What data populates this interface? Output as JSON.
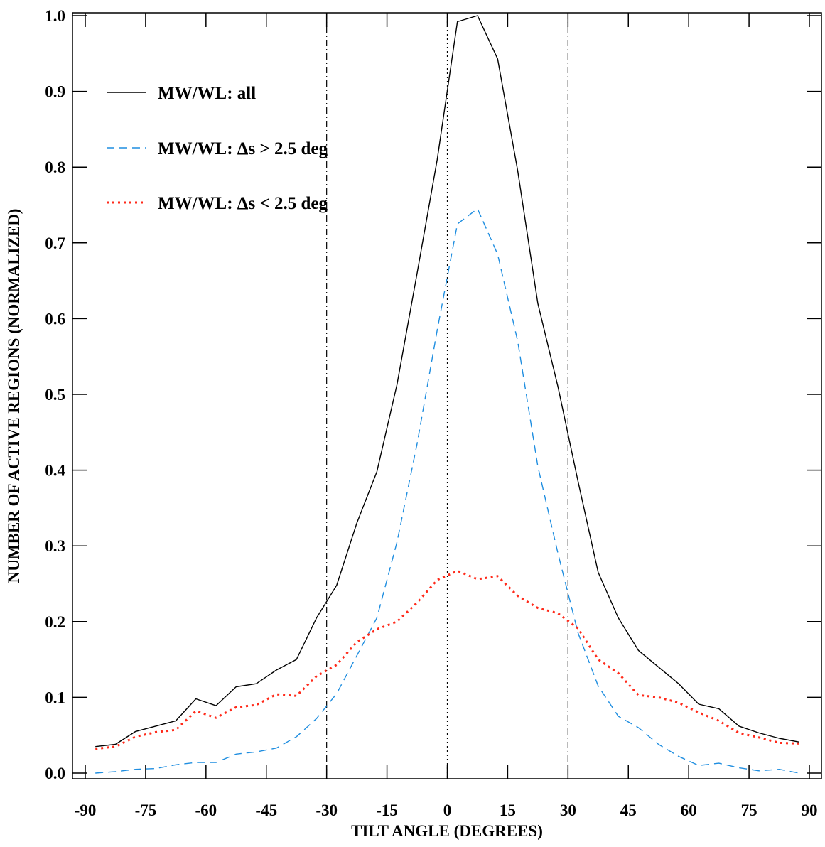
{
  "chart_data": {
    "type": "line",
    "xlabel": "TILT  ANGLE   (DEGREES)",
    "ylabel": "NUMBER  OF  ACTIVE  REGIONS  (NORMALIZED)",
    "xlim": [
      -90,
      90
    ],
    "ylim": [
      0,
      1.0
    ],
    "x_ticks": [
      -90,
      -75,
      -60,
      -45,
      -30,
      -15,
      0,
      15,
      30,
      45,
      60,
      75,
      90
    ],
    "y_ticks": [
      0.0,
      0.1,
      0.2,
      0.3,
      0.4,
      0.5,
      0.6,
      0.7,
      0.8,
      0.9,
      1.0
    ],
    "x_tick_labels": [
      "-90",
      "-75",
      "-60",
      "-45",
      "-30",
      "-15",
      "0",
      "15",
      "30",
      "45",
      "60",
      "75",
      "90"
    ],
    "y_tick_labels": [
      "0.0",
      "0.1",
      "0.2",
      "0.3",
      "0.4",
      "0.5",
      "0.6",
      "0.7",
      "0.8",
      "0.9",
      "1.0"
    ],
    "reference_lines": [
      {
        "x": -30,
        "style": "dashdot"
      },
      {
        "x": 0,
        "style": "dotted"
      },
      {
        "x": 30,
        "style": "dashdot"
      }
    ],
    "legend_position": "top-left",
    "x": [
      -87.5,
      -82.5,
      -77.5,
      -72.5,
      -67.5,
      -62.5,
      -57.5,
      -52.5,
      -47.5,
      -42.5,
      -37.5,
      -32.5,
      -27.5,
      -22.5,
      -17.5,
      -12.5,
      -7.5,
      -2.5,
      2.5,
      7.5,
      12.5,
      17.5,
      22.5,
      27.5,
      32.5,
      37.5,
      42.5,
      47.5,
      52.5,
      57.5,
      62.5,
      67.5,
      72.5,
      77.5,
      82.5,
      87.5
    ],
    "series": [
      {
        "name": "MW/WL:  all",
        "color": "#000000",
        "dash": "solid",
        "values": [
          0.035,
          0.038,
          0.055,
          0.062,
          0.069,
          0.098,
          0.089,
          0.114,
          0.118,
          0.136,
          0.15,
          0.205,
          0.248,
          0.33,
          0.398,
          0.513,
          0.66,
          0.81,
          0.992,
          1.0,
          0.943,
          0.795,
          0.62,
          0.51,
          0.385,
          0.265,
          0.205,
          0.162,
          0.14,
          0.118,
          0.091,
          0.085,
          0.062,
          0.053,
          0.046,
          0.041
        ]
      },
      {
        "name": "MW/WL:  Δs > 2.5 deg",
        "color": "#1f8ee0",
        "dash": "dashed",
        "values": [
          0.0,
          0.002,
          0.005,
          0.006,
          0.011,
          0.014,
          0.014,
          0.025,
          0.028,
          0.033,
          0.048,
          0.072,
          0.105,
          0.155,
          0.205,
          0.305,
          0.435,
          0.585,
          0.725,
          0.745,
          0.685,
          0.57,
          0.405,
          0.29,
          0.185,
          0.115,
          0.075,
          0.06,
          0.038,
          0.022,
          0.01,
          0.013,
          0.007,
          0.003,
          0.005,
          0.0
        ]
      },
      {
        "name": "MW/WL:  Δs < 2.5 deg",
        "color": "#ff2a1a",
        "dash": "dotted",
        "values": [
          0.032,
          0.035,
          0.048,
          0.054,
          0.057,
          0.082,
          0.073,
          0.087,
          0.09,
          0.104,
          0.102,
          0.128,
          0.143,
          0.173,
          0.19,
          0.2,
          0.225,
          0.255,
          0.267,
          0.256,
          0.26,
          0.234,
          0.218,
          0.211,
          0.191,
          0.15,
          0.132,
          0.103,
          0.1,
          0.093,
          0.08,
          0.069,
          0.053,
          0.047,
          0.04,
          0.039
        ]
      }
    ]
  }
}
